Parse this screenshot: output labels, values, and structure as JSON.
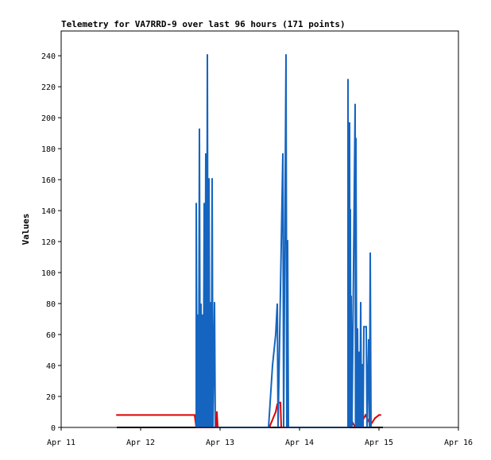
{
  "title": "Telemetry for VA7RRD-9 over last 96 hours (171 points)",
  "chart_data": {
    "type": "line",
    "title": "Telemetry for VA7RRD-9 over last 96 hours (171 points)",
    "ylabel": "Values",
    "xlabel": "",
    "x_unit": "days since Apr 11 00:00",
    "xlim": [
      0,
      5
    ],
    "ylim": [
      0,
      256
    ],
    "x_ticks": [
      {
        "value": 0,
        "label": "Apr 11"
      },
      {
        "value": 1,
        "label": "Apr 12"
      },
      {
        "value": 2,
        "label": "Apr 13"
      },
      {
        "value": 3,
        "label": "Apr 14"
      },
      {
        "value": 4,
        "label": "Apr 15"
      },
      {
        "value": 5,
        "label": "Apr 16"
      }
    ],
    "y_ticks": [
      0,
      20,
      40,
      60,
      80,
      100,
      120,
      140,
      160,
      180,
      200,
      220,
      240
    ],
    "colors": {
      "blue": "#1565c0",
      "red": "#e00000",
      "black": "#000000",
      "grid": "#000000"
    },
    "series": [
      {
        "color": "#000000",
        "points": [
          [
            0.7,
            0
          ],
          [
            1.7,
            0
          ],
          [
            2.0,
            0
          ],
          [
            2.6,
            0
          ],
          [
            3.6,
            0
          ],
          [
            4.05,
            0
          ]
        ]
      },
      {
        "color": "#e00000",
        "points": [
          [
            0.7,
            8
          ],
          [
            1.68,
            8
          ],
          [
            1.7,
            0
          ],
          [
            1.95,
            0
          ],
          [
            1.96,
            10
          ],
          [
            1.97,
            0
          ],
          [
            2.62,
            0
          ],
          [
            2.66,
            5
          ],
          [
            2.7,
            10
          ],
          [
            2.72,
            15
          ],
          [
            2.74,
            16
          ],
          [
            2.76,
            16
          ],
          [
            2.77,
            0
          ],
          [
            3.62,
            0
          ],
          [
            3.63,
            8
          ],
          [
            3.65,
            5
          ],
          [
            3.68,
            2
          ],
          [
            3.7,
            0
          ],
          [
            3.76,
            2
          ],
          [
            3.8,
            5
          ],
          [
            3.83,
            8
          ],
          [
            3.85,
            6
          ],
          [
            3.88,
            3
          ],
          [
            3.9,
            2
          ],
          [
            3.95,
            6
          ],
          [
            4.0,
            8
          ],
          [
            4.02,
            8
          ]
        ]
      },
      {
        "color": "#1565c0",
        "points": [
          [
            1.7,
            0
          ],
          [
            1.7,
            145
          ],
          [
            1.71,
            0
          ],
          [
            1.72,
            73
          ],
          [
            1.73,
            0
          ],
          [
            1.74,
            193
          ],
          [
            1.75,
            0
          ],
          [
            1.76,
            80
          ],
          [
            1.77,
            0
          ],
          [
            1.78,
            73
          ],
          [
            1.79,
            0
          ],
          [
            1.8,
            145
          ],
          [
            1.81,
            0
          ],
          [
            1.82,
            177
          ],
          [
            1.83,
            0
          ],
          [
            1.84,
            241
          ],
          [
            1.85,
            0
          ],
          [
            1.86,
            161
          ],
          [
            1.87,
            0
          ],
          [
            1.88,
            81
          ],
          [
            1.89,
            0
          ],
          [
            1.9,
            161
          ],
          [
            1.91,
            0
          ],
          [
            1.93,
            81
          ],
          [
            1.94,
            0
          ],
          [
            2.61,
            0
          ],
          [
            2.66,
            40
          ],
          [
            2.7,
            60
          ],
          [
            2.72,
            80
          ],
          [
            2.73,
            0
          ],
          [
            2.79,
            177
          ],
          [
            2.8,
            0
          ],
          [
            2.83,
            241
          ],
          [
            2.84,
            0
          ],
          [
            2.85,
            121
          ],
          [
            2.86,
            0
          ],
          [
            3.61,
            0
          ],
          [
            3.61,
            225
          ],
          [
            3.62,
            0
          ],
          [
            3.63,
            197
          ],
          [
            3.635,
            0
          ],
          [
            3.64,
            141
          ],
          [
            3.645,
            0
          ],
          [
            3.65,
            85
          ],
          [
            3.66,
            0
          ],
          [
            3.7,
            209
          ],
          [
            3.705,
            0
          ],
          [
            3.71,
            187
          ],
          [
            3.72,
            0
          ],
          [
            3.73,
            64
          ],
          [
            3.74,
            0
          ],
          [
            3.75,
            49
          ],
          [
            3.76,
            0
          ],
          [
            3.77,
            81
          ],
          [
            3.78,
            0
          ],
          [
            3.79,
            41
          ],
          [
            3.8,
            0
          ],
          [
            3.81,
            65
          ],
          [
            3.84,
            65
          ],
          [
            3.85,
            0
          ],
          [
            3.87,
            57
          ],
          [
            3.88,
            0
          ],
          [
            3.89,
            113
          ],
          [
            3.9,
            0
          ]
        ]
      }
    ],
    "grid": false,
    "legend": "none"
  }
}
